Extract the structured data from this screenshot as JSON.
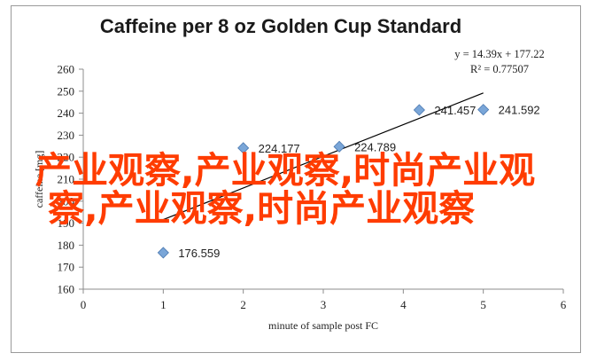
{
  "chart_data": {
    "type": "scatter",
    "title": "Caffeine per 8 oz Golden Cup Standard",
    "xlabel": "minute of sample post FC",
    "ylabel": "caffeine [mg]",
    "xlim": [
      0,
      6
    ],
    "ylim": [
      160,
      260
    ],
    "xticks": [
      "0",
      "1",
      "2",
      "3",
      "4",
      "5",
      "6"
    ],
    "yticks": [
      "160",
      "170",
      "180",
      "190",
      "200",
      "210",
      "220",
      "230",
      "240",
      "250",
      "260"
    ],
    "grid": false,
    "legend": "none",
    "points": [
      {
        "x": 1.0,
        "y": 176.559,
        "label": "176.559"
      },
      {
        "x": 2.0,
        "y": 224.177,
        "label": "224.177"
      },
      {
        "x": 3.2,
        "y": 224.789,
        "label": "224.789"
      },
      {
        "x": 4.2,
        "y": 241.457,
        "label": "241.457"
      },
      {
        "x": 5.0,
        "y": 241.592,
        "label": "241.592"
      }
    ],
    "trendline": {
      "slope": 14.39,
      "intercept": 177.22,
      "x_range": [
        1,
        5
      ],
      "equation": "y = 14.39x + 177.22",
      "r2": "R² = 0.77507"
    },
    "colors": {
      "marker_fill": "#7aa6d8",
      "marker_stroke": "#4a78b0",
      "trendline": "#000000",
      "axis": "#8c8c8c"
    }
  },
  "overlay": {
    "line1": "产业观察,产业观察,时尚产业观",
    "line2": "察,产业观察,时尚产业观察",
    "color": "#ff3c00"
  }
}
